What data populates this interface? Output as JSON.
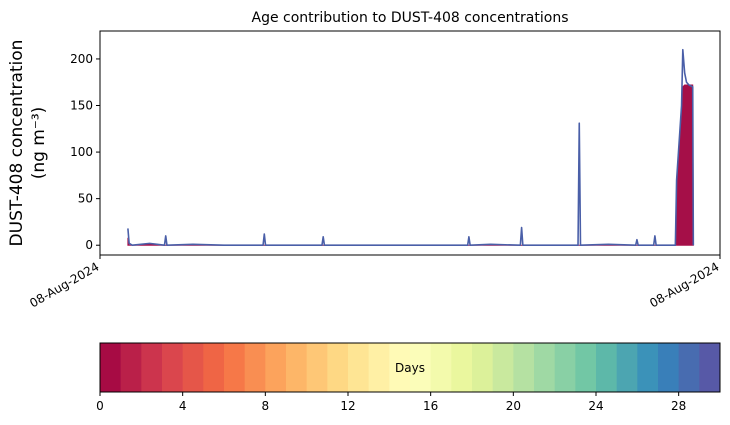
{
  "chart_data": {
    "type": "line",
    "title": "Age contribution to DUST-408 concentrations",
    "ylabel": [
      "DUST-408 concentration",
      "(ng m⁻³)"
    ],
    "x": [
      4.5,
      4.7,
      5.2,
      8,
      10.4,
      10.6,
      10.8,
      15,
      20,
      26.3,
      26.5,
      26.7,
      30,
      35.8,
      36,
      36.2,
      45,
      50,
      59.3,
      59.5,
      59.7,
      63,
      67.8,
      68,
      68.2,
      72,
      77.1,
      77.3,
      77.5,
      82,
      86.4,
      86.6,
      86.8,
      89.3,
      89.5,
      89.7,
      92.8,
      93,
      93.4,
      93.8,
      94,
      94.3,
      94.6,
      95,
      95.6,
      95.7
    ],
    "series": [
      {
        "color": "#a50f48",
        "fill": true,
        "values": [
          8,
          0,
          0,
          1,
          0,
          0,
          0,
          0,
          0,
          0,
          0,
          0,
          0,
          0,
          0,
          0,
          0,
          0,
          0,
          0,
          0,
          0,
          0,
          0,
          0,
          0,
          0,
          0,
          0,
          0,
          0,
          0,
          0,
          0,
          0,
          0,
          0,
          65,
          105,
          145,
          170,
          172,
          172,
          172,
          172,
          0
        ]
      },
      {
        "color": "#4a5fa8",
        "fill": false,
        "values": [
          18,
          2,
          0,
          2,
          0,
          10,
          0,
          1,
          0,
          0,
          12,
          0,
          0,
          0,
          9,
          0,
          0,
          0,
          0,
          9,
          0,
          1,
          0,
          19,
          0,
          0,
          0,
          131,
          0,
          1,
          0,
          6,
          0,
          0,
          10,
          0,
          0,
          70,
          110,
          150,
          210,
          185,
          175,
          172,
          170,
          0
        ]
      }
    ],
    "xlim": [
      0,
      100
    ],
    "xticks": [
      {
        "value": 0,
        "label": "08-Aug-2024"
      },
      {
        "value": 100,
        "label": "08-Aug-2024"
      }
    ],
    "ylim": [
      -10.5,
      230
    ],
    "yticks": [
      0,
      50,
      100,
      150,
      200
    ],
    "colorbar": {
      "label": "Days",
      "lim": [
        0,
        30
      ],
      "ticks": [
        0,
        4,
        8,
        12,
        16,
        20,
        24,
        28
      ],
      "colormap": [
        "#9e0142",
        "#d53e4f",
        "#f46d43",
        "#fdae61",
        "#fee08b",
        "#ffffbf",
        "#e6f598",
        "#abdda4",
        "#66c2a5",
        "#3288bd",
        "#5e4fa2"
      ]
    }
  }
}
